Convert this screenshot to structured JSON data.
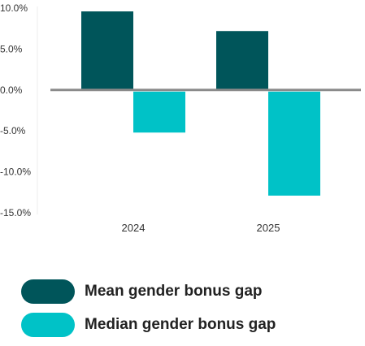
{
  "chart_data": {
    "type": "bar",
    "categories": [
      "2024",
      "2025"
    ],
    "series": [
      {
        "name": "Mean gender bonus gap",
        "values": [
          9.6,
          7.2
        ],
        "color": "#00555a"
      },
      {
        "name": "Median gender bonus gap",
        "values": [
          -5.2,
          -12.9
        ],
        "color": "#00c2c7"
      }
    ],
    "ylim": [
      -15,
      10
    ],
    "yticks": [
      10,
      5,
      0,
      -5,
      -10,
      -15
    ],
    "ytick_labels": [
      "10.0%",
      "5.0%",
      "0.0%",
      "-5.0%",
      "-10.0%",
      "-15.0%"
    ],
    "zero_line_color": "#8a8a8a",
    "grid": false,
    "legend_position": "bottom-left"
  }
}
